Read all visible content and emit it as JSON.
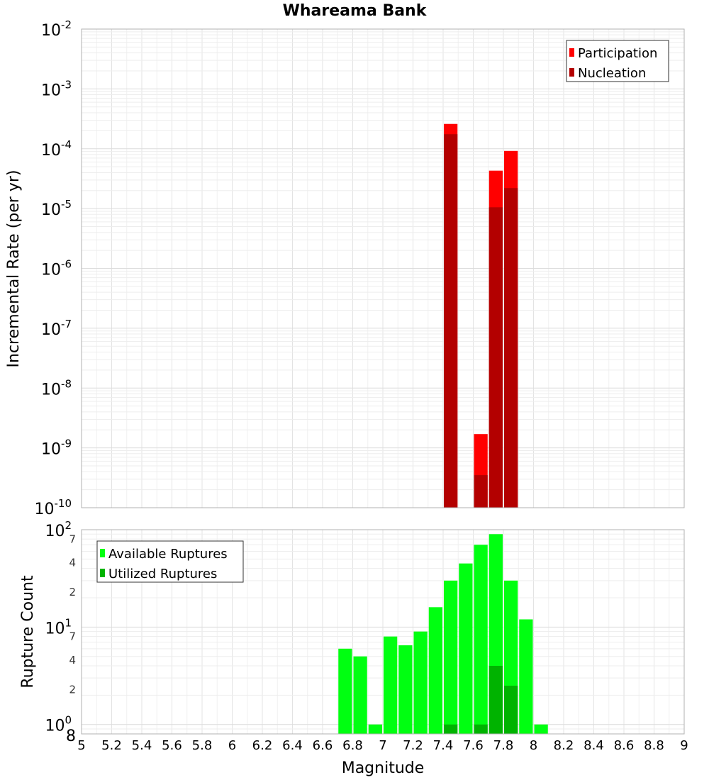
{
  "chart_data": [
    {
      "type": "bar",
      "title": "Whareama Bank",
      "xlabel": "",
      "ylabel": "Incremental Rate (per yr)",
      "xlim": [
        5,
        9
      ],
      "ylim": [
        1e-10,
        0.01
      ],
      "yscale": "log",
      "bin_width": 0.1,
      "grid": true,
      "legend_position": "top-right",
      "x": [
        7.45,
        7.65,
        7.75,
        7.85
      ],
      "series": [
        {
          "name": "Participation",
          "color": "#ff0000",
          "values": [
            0.00026,
            1.7e-09,
            4.3e-05,
            9.2e-05
          ]
        },
        {
          "name": "Nucleation",
          "color": "#b30000",
          "values": [
            0.000175,
            3.5e-10,
            1.05e-05,
            2.2e-05
          ]
        }
      ],
      "y_major_ticks": [
        {
          "base": "10",
          "exp": "-10",
          "value": 1e-10
        },
        {
          "base": "10",
          "exp": "-9",
          "value": 1e-09
        },
        {
          "base": "10",
          "exp": "-8",
          "value": 1e-08
        },
        {
          "base": "10",
          "exp": "-7",
          "value": 1e-07
        },
        {
          "base": "10",
          "exp": "-6",
          "value": 1e-06
        },
        {
          "base": "10",
          "exp": "-5",
          "value": 1e-05
        },
        {
          "base": "10",
          "exp": "-4",
          "value": 0.0001
        },
        {
          "base": "10",
          "exp": "-3",
          "value": 0.001
        },
        {
          "base": "10",
          "exp": "-2",
          "value": 0.01
        }
      ]
    },
    {
      "type": "bar",
      "title": "",
      "xlabel": "Magnitude",
      "ylabel": "Rupture Count",
      "xlim": [
        5,
        9
      ],
      "ylim": [
        0.8,
        100
      ],
      "yscale": "log",
      "bin_width": 0.1,
      "grid": true,
      "legend_position": "top-left",
      "x": [
        6.75,
        6.85,
        6.95,
        7.05,
        7.15,
        7.25,
        7.35,
        7.45,
        7.55,
        7.65,
        7.75,
        7.85,
        7.95,
        8.05
      ],
      "series": [
        {
          "name": "Available Ruptures",
          "color": "#00ff11",
          "values": [
            6,
            5,
            1,
            8,
            6.5,
            9,
            16,
            30,
            45,
            70,
            90,
            30,
            12,
            1
          ]
        },
        {
          "name": "Utilized Ruptures",
          "color": "#00b300",
          "values": [
            0,
            0,
            0,
            0,
            0,
            0,
            0,
            1,
            0,
            1,
            4,
            2.5,
            0,
            0
          ]
        }
      ],
      "x_ticks": [
        "5",
        "5.2",
        "5.4",
        "5.6",
        "5.8",
        "6",
        "6.2",
        "6.4",
        "6.6",
        "6.8",
        "7",
        "7.2",
        "7.4",
        "7.6",
        "7.8",
        "8",
        "8.2",
        "8.4",
        "8.6",
        "8.8",
        "9"
      ],
      "y_major_ticks": [
        {
          "base": "10",
          "exp": "0",
          "value": 1
        },
        {
          "base": "10",
          "exp": "1",
          "value": 10
        },
        {
          "base": "10",
          "exp": "2",
          "value": 100
        }
      ],
      "y_minor_labels": [
        {
          "label": "8",
          "value": 0.8
        },
        {
          "label": "2",
          "value": 2
        },
        {
          "label": "4",
          "value": 4
        },
        {
          "label": "7",
          "value": 7
        },
        {
          "label": "2",
          "value": 20
        },
        {
          "label": "4",
          "value": 40
        },
        {
          "label": "7",
          "value": 70
        }
      ]
    }
  ]
}
